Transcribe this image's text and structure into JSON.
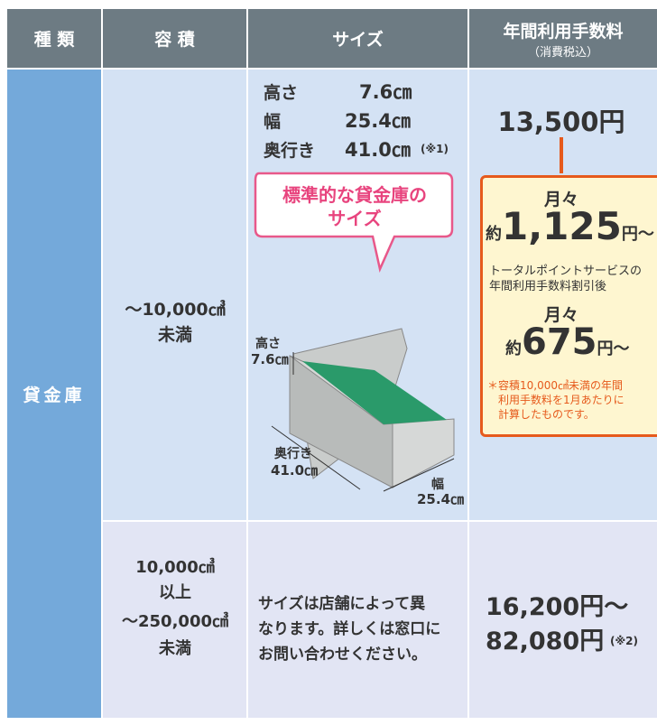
{
  "header": {
    "type": "種 類",
    "volume": "容 積",
    "size": "サイズ",
    "fee": "年間利用手数料",
    "fee_note": "（消費税込）"
  },
  "rows": [
    {
      "type": "貸金庫",
      "volume": [
        "〜10,000㎤",
        "未満"
      ],
      "size_specs": [
        {
          "label": "高さ",
          "value": "7.6㎝"
        },
        {
          "label": "幅",
          "value": "25.4㎝"
        },
        {
          "label": "奥行き",
          "value": "41.0㎝",
          "note": "(※1)"
        }
      ],
      "bubble": [
        "標準的な貸金庫の",
        "サイズ"
      ],
      "diagram": {
        "height_label": "高さ",
        "height_value": "7.6㎝",
        "depth_label": "奥行き",
        "depth_value": "41.0㎝",
        "width_label": "幅",
        "width_value": "25.4㎝"
      },
      "fee": "13,500円",
      "callout": {
        "monthly_label": "月々",
        "approx": "約",
        "monthly": "1,125",
        "unit": "円〜",
        "discount_lines": [
          "トータルポイントサービスの",
          "年間利用手数料割引後"
        ],
        "discount_monthly_label": "月々",
        "discount_approx": "約",
        "discount_monthly": "675",
        "discount_unit": "円〜",
        "note_lines": [
          "＊容積10,000㎤未満の年間",
          "利用手数料を1月あたりに",
          "計算したものです。"
        ]
      }
    },
    {
      "volume": [
        "10,000㎤",
        "以上",
        "〜250,000㎤",
        "未満"
      ],
      "size_text": [
        "サイズは店舗によって異",
        "なります。詳しくは窓口に",
        "お問い合わせください。"
      ],
      "fee_lines": [
        "16,200円〜",
        "82,080円"
      ],
      "fee_note": "(※2)"
    }
  ]
}
